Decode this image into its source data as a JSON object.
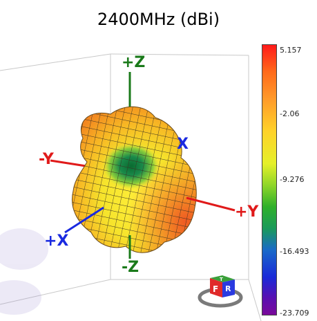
{
  "title": "2400MHz (dBi)",
  "axes": {
    "plus_z": "+Z",
    "minus_z": "-Z",
    "plus_x": "+X",
    "minus_x": "X",
    "plus_y": "+Y",
    "minus_y": "-Y"
  },
  "colorbar": {
    "ticks": [
      "5.157",
      "-2.06",
      "-9.276",
      "-16.493",
      "-23.709"
    ]
  },
  "nav_cube": {
    "front": "F",
    "right": "R",
    "top": "T"
  },
  "colors": {
    "z_axis": "#1a7a1a",
    "x_axis": "#1a2ae0",
    "y_axis": "#e01a1a"
  }
}
